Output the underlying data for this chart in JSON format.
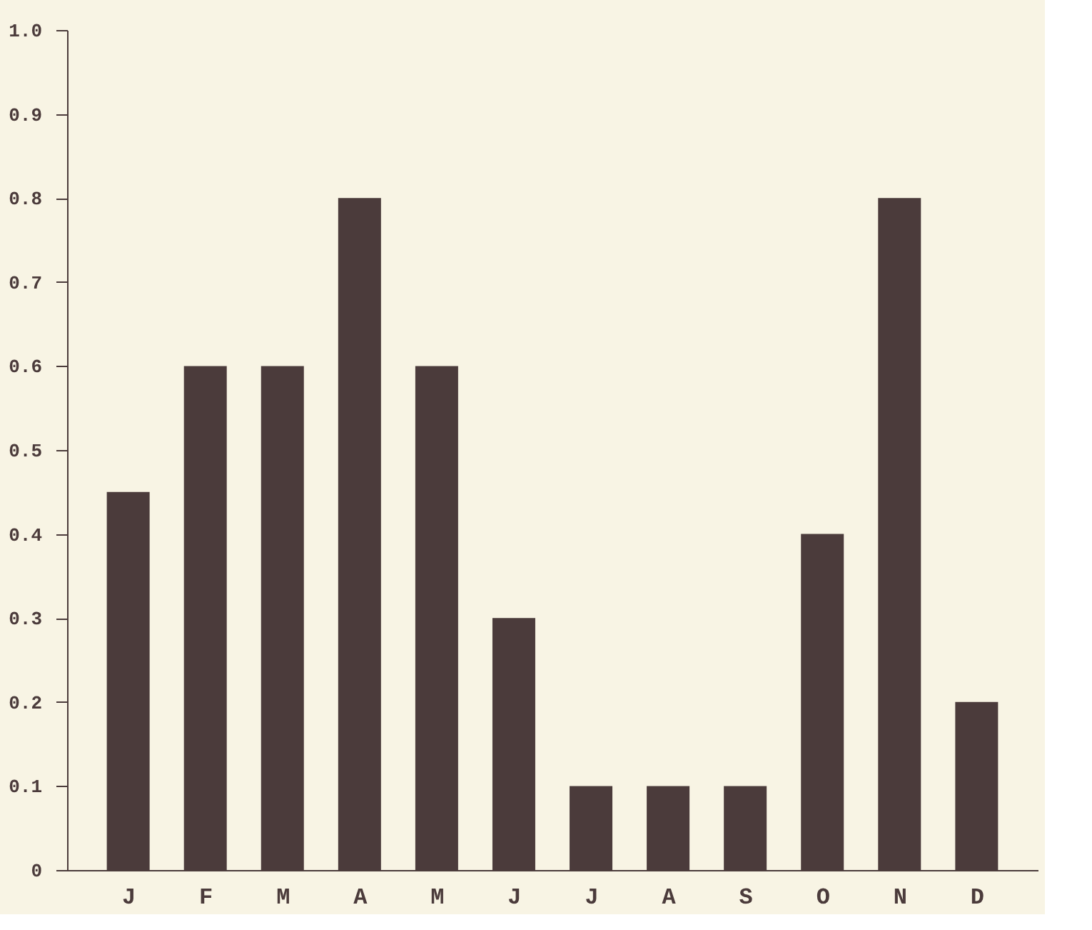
{
  "chart_data": {
    "type": "bar",
    "categories": [
      "J",
      "F",
      "M",
      "A",
      "M",
      "J",
      "J",
      "A",
      "S",
      "O",
      "N",
      "D"
    ],
    "values": [
      0.45,
      0.6,
      0.6,
      0.8,
      0.6,
      0.3,
      0.1,
      0.1,
      0.1,
      0.4,
      0.8,
      0.2
    ],
    "color": "#4b3b3b",
    "ylim": [
      0,
      1
    ],
    "yticks": [
      0,
      0.1,
      0.2,
      0.3,
      0.4,
      0.5,
      0.6,
      0.7,
      0.8,
      0.9,
      {
        "value": 1,
        "label": "1.0"
      }
    ],
    "grid": false
  }
}
